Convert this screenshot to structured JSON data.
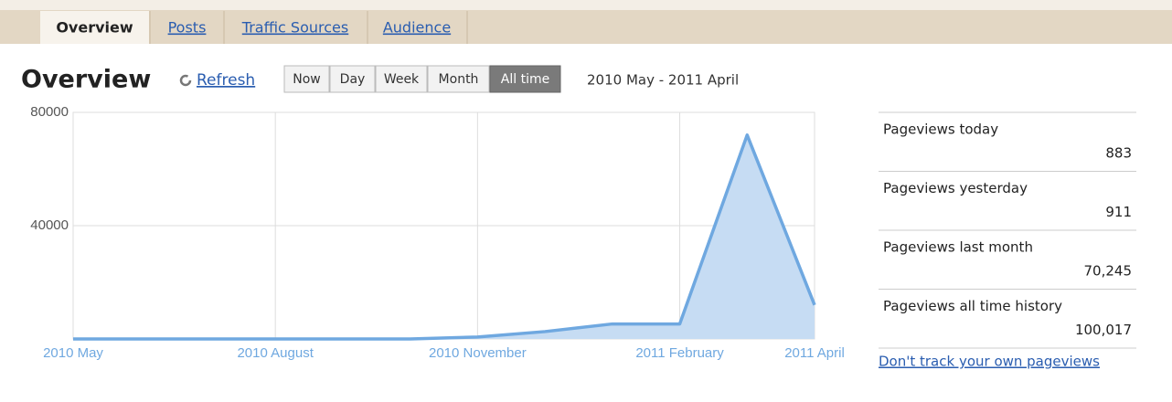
{
  "tabs": [
    "Overview",
    "Posts",
    "Traffic Sources",
    "Audience"
  ],
  "header": {
    "title": "Overview",
    "refresh": "Refresh",
    "ranges": [
      "Now",
      "Day",
      "Week",
      "Month",
      "All time"
    ],
    "date_range": "2010 May - 2011 April"
  },
  "chart_data": {
    "type": "area",
    "categories": [
      "2010 May",
      null,
      null,
      "2010 August",
      null,
      null,
      "2010 November",
      null,
      null,
      "2011 February",
      null,
      "2011 April"
    ],
    "values": [
      0,
      0,
      0,
      0,
      0,
      0,
      700,
      2600,
      5300,
      5300,
      72000,
      12000
    ],
    "color": "#6fa8e0",
    "fill": "#c6dcf3",
    "ylim": [
      0,
      80000
    ],
    "yticks": [
      40000,
      80000
    ],
    "grid": true
  },
  "stats": [
    {
      "label": "Pageviews today",
      "value": "883"
    },
    {
      "label": "Pageviews yesterday",
      "value": "911"
    },
    {
      "label": "Pageviews last month",
      "value": "70,245"
    },
    {
      "label": "Pageviews all time history",
      "value": "100,017"
    }
  ],
  "footer_link": "Don't track your own pageviews"
}
